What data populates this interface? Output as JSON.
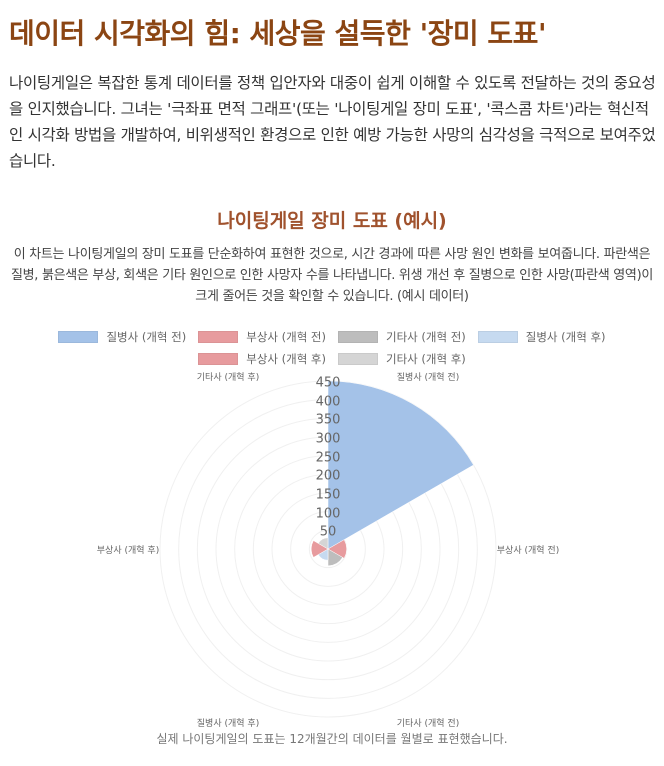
{
  "page": {
    "title": "데이터 시각화의 힘: 세상을 설득한 '장미 도표'",
    "intro": "나이팅게일은 복잡한 통계 데이터를 정책 입안자와 대중이 쉽게 이해할 수 있도록 전달하는 것의 중요성을 인지했습니다. 그녀는 '극좌표 면적 그래프'(또는 '나이팅게일 장미 도표', '콕스콤 차트')라는 혁신적인 시각화 방법을 개발하여, 비위생적인 환경으로 인한 예방 가능한 사망의 심각성을 극적으로 보여주었습니다.",
    "section_title": "나이팅게일 장미 도표 (예시)",
    "chart_description": "이 차트는 나이팅게일의 장미 도표를 단순화하여 표현한 것으로, 시간 경과에 따른 사망 원인 변화를 보여줍니다. 파란색은 질병, 붉은색은 부상, 회색은 기타 원인으로 인한 사망자 수를 나타냅니다. 위생 개선 후 질병으로 인한 사망(파란색 영역)이 크게 줄어든 것을 확인할 수 있습니다. (예시 데이터)",
    "footnote": "실제 나이팅게일의 도표는 12개월간의 데이터를 월별로 표현했습니다."
  },
  "legend": {
    "rows": [
      [
        {
          "label": "질병사 (개혁 전)",
          "color": "#a4c2e8"
        },
        {
          "label": "부상사 (개혁 전)",
          "color": "#e79b9e"
        },
        {
          "label": "기타사 (개혁 전)",
          "color": "#bdbdbd"
        },
        {
          "label": "질병사 (개혁 후)",
          "color": "#c6daf0"
        }
      ],
      [
        {
          "label": "부상사 (개혁 후)",
          "color": "#e79b9e"
        },
        {
          "label": "기타사 (개혁 후)",
          "color": "#d5d5d5"
        }
      ]
    ]
  },
  "chart_data": {
    "type": "polarArea",
    "title": "나이팅게일 장미 도표 (예시)",
    "categories": [
      "질병사 (개혁 전)",
      "부상사 (개혁 전)",
      "기타사 (개혁 전)",
      "질병사 (개혁 후)",
      "부상사 (개혁 후)",
      "기타사 (개혁 후)"
    ],
    "values": [
      450,
      50,
      45,
      30,
      45,
      30
    ],
    "colors": [
      "#a4c2e8",
      "#e79b9e",
      "#bdbdbd",
      "#c6daf0",
      "#e79b9e",
      "#d5d5d5"
    ],
    "radial_ticks": [
      50,
      100,
      150,
      200,
      250,
      300,
      350,
      400,
      450
    ],
    "rlim": [
      0,
      450
    ],
    "grid": true,
    "legend_position": "top"
  }
}
